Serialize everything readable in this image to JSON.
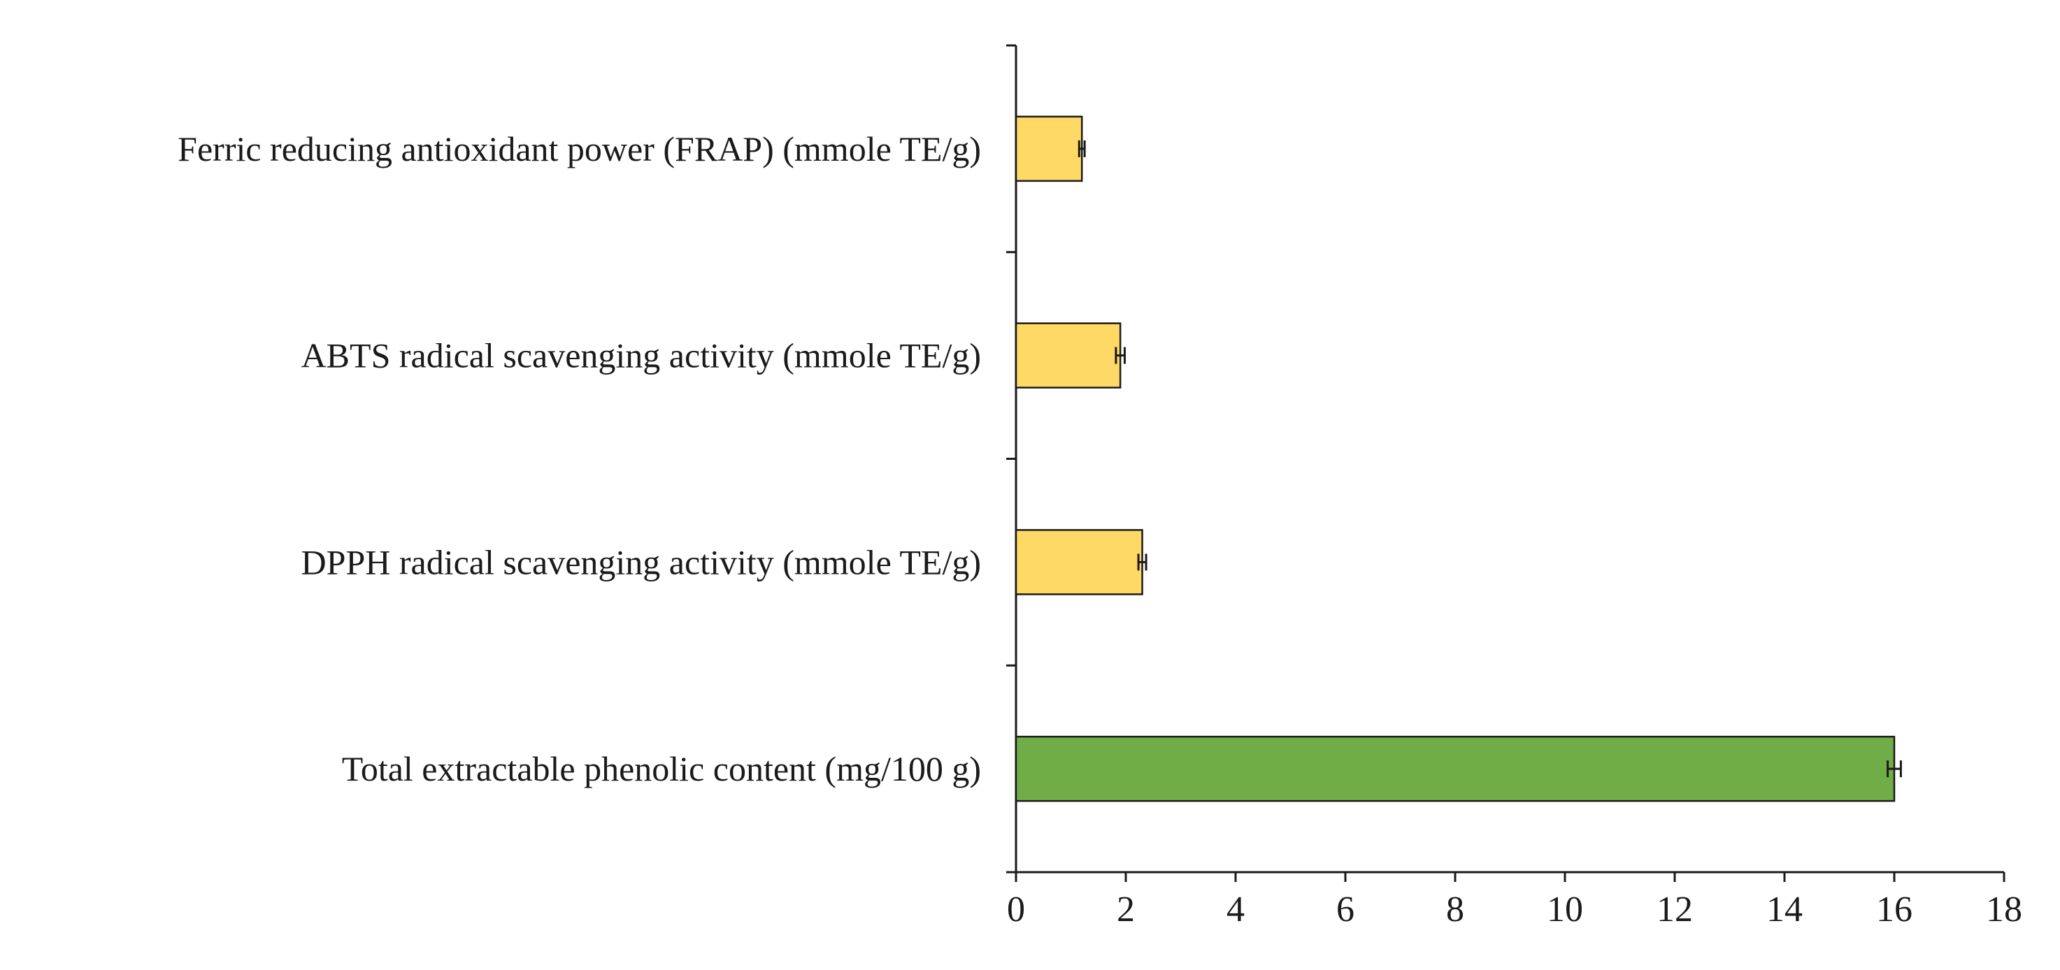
{
  "chart_data": {
    "type": "bar",
    "orientation": "horizontal",
    "title": "",
    "xlabel": "",
    "ylabel": "",
    "xlim": [
      0,
      18
    ],
    "x_ticks": [
      0,
      2,
      4,
      6,
      8,
      10,
      12,
      14,
      16,
      18
    ],
    "grid": false,
    "legend": "none",
    "categories": [
      "Ferric reducing antioxidant power (FRAP) (mmole TE/g)",
      "ABTS radical scavenging activity (mmole TE/g)",
      "DPPH radical scavenging activity (mmole TE/g)",
      "Total extractable phenolic content (mg/100 g)"
    ],
    "values": [
      1.2,
      1.9,
      2.3,
      16.0
    ],
    "errors": [
      0.05,
      0.08,
      0.07,
      0.12
    ],
    "colors": [
      "#FFD966",
      "#FFD966",
      "#FFD966",
      "#70AD47"
    ],
    "bar_edge_color": "#1a1a1a",
    "axis_color": "#1a1a1a"
  }
}
